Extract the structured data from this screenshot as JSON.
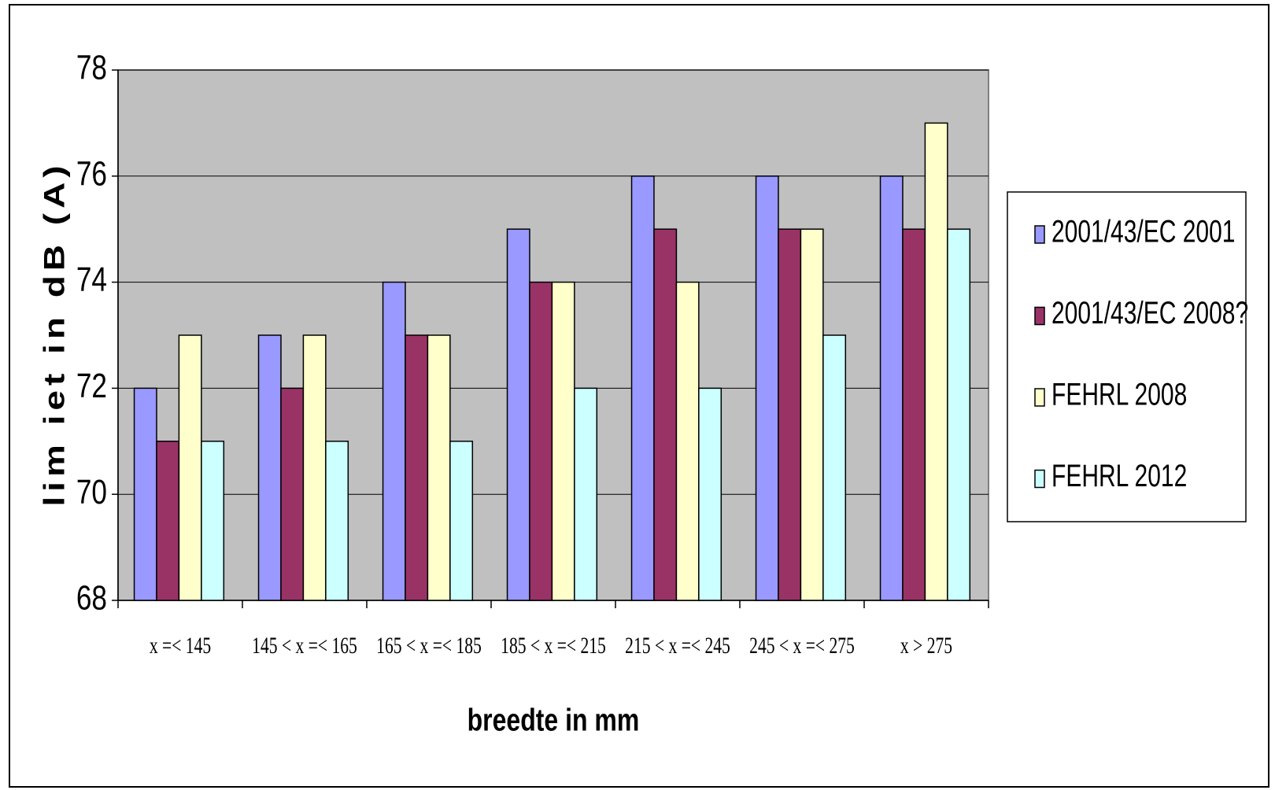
{
  "chart_data": {
    "type": "bar",
    "x_label": "breedte in mm",
    "y_label": "lim iet in dB (A)",
    "categories": [
      "x =< 145",
      "145 < x =< 165",
      "165 < x =< 185",
      "185 < x =< 215",
      "215 < x =< 245",
      "245 < x =< 275",
      "x > 275"
    ],
    "series": [
      {
        "name": "2001/43/EC 2001",
        "color": "#9999ff",
        "values": [
          72,
          73,
          74,
          75,
          76,
          76,
          76
        ]
      },
      {
        "name": "2001/43/EC 2008?",
        "color": "#993366",
        "values": [
          71,
          72,
          73,
          74,
          75,
          75,
          75
        ]
      },
      {
        "name": "FEHRL 2008",
        "color": "#ffffcc",
        "values": [
          73,
          73,
          73,
          74,
          74,
          75,
          77
        ]
      },
      {
        "name": "FEHRL 2012",
        "color": "#ccffff",
        "values": [
          71,
          71,
          71,
          72,
          72,
          73,
          75
        ]
      }
    ],
    "ylim": [
      68,
      78
    ],
    "yticks": [
      68,
      70,
      72,
      74,
      76,
      78
    ],
    "grid": true,
    "legend": "right"
  }
}
